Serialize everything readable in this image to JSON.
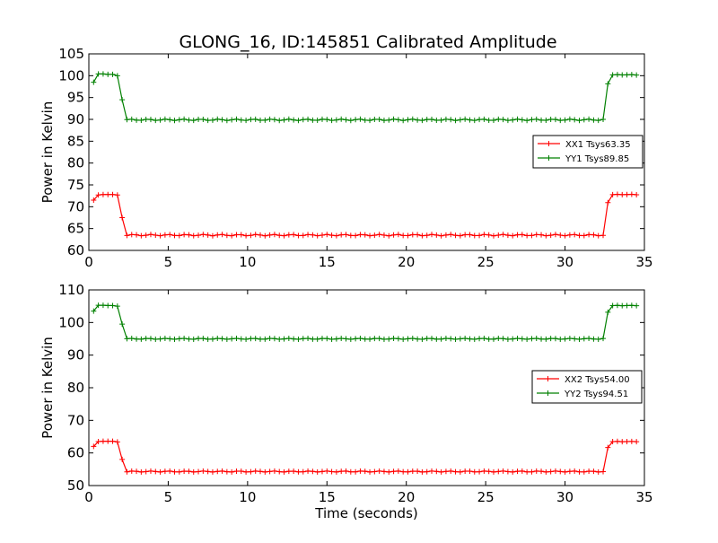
{
  "figure_title": "GLONG_16, ID:145851 Calibrated Amplitude",
  "chart_data": [
    {
      "type": "line",
      "title": "GLONG_16, ID:145851 Calibrated Amplitude",
      "xlabel": "",
      "ylabel": "Power in Kelvin",
      "xlim": [
        0,
        35
      ],
      "ylim": [
        60,
        105
      ],
      "xticks": [
        0,
        5,
        10,
        15,
        20,
        25,
        30,
        35
      ],
      "yticks": [
        60,
        65,
        70,
        75,
        80,
        85,
        90,
        95,
        100,
        105
      ],
      "grid": false,
      "legend_position": "center-right",
      "series": [
        {
          "name": "XX1 Tsys63.35",
          "color": "#ff0000",
          "high": 72.8,
          "low": 63.5,
          "profile": [
            71.5,
            72.7,
            72.8,
            72.8,
            72.8,
            72.7,
            67.5
          ]
        },
        {
          "name": "YY1 Tsys89.85",
          "color": "#008000",
          "high": 100.2,
          "low": 89.9,
          "profile": [
            98.5,
            100.4,
            100.4,
            100.3,
            100.3,
            100.0,
            94.5
          ]
        }
      ]
    },
    {
      "type": "line",
      "title": "",
      "xlabel": "Time (seconds)",
      "ylabel": "Power in Kelvin",
      "xlim": [
        0,
        35
      ],
      "ylim": [
        50,
        110
      ],
      "xticks": [
        0,
        5,
        10,
        15,
        20,
        25,
        30,
        35
      ],
      "yticks": [
        50,
        60,
        70,
        80,
        90,
        100,
        110
      ],
      "grid": false,
      "legend_position": "center-right",
      "series": [
        {
          "name": "XX2 Tsys54.00",
          "color": "#ff0000",
          "high": 63.5,
          "low": 54.3,
          "profile": [
            62.0,
            63.5,
            63.6,
            63.6,
            63.6,
            63.4,
            58.0
          ]
        },
        {
          "name": "YY2 Tsys94.51",
          "color": "#008000",
          "high": 105.2,
          "low": 95.0,
          "profile": [
            103.5,
            105.3,
            105.3,
            105.2,
            105.2,
            105.0,
            99.5
          ]
        }
      ]
    }
  ]
}
